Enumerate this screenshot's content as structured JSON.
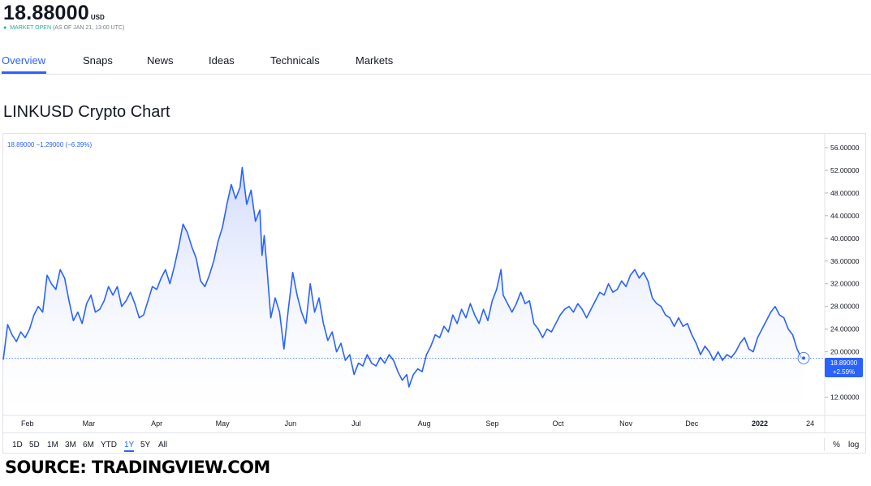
{
  "header": {
    "price": "18.88000",
    "currency": "USD",
    "status_open": "MARKET OPEN",
    "status_asof": "(AS OF JAN 21, 13:00 UTC)"
  },
  "tabs": [
    {
      "label": "Overview",
      "active": true
    },
    {
      "label": "Snaps",
      "active": false
    },
    {
      "label": "News",
      "active": false
    },
    {
      "label": "Ideas",
      "active": false
    },
    {
      "label": "Technicals",
      "active": false
    },
    {
      "label": "Markets",
      "active": false
    }
  ],
  "page_title": "LINKUSD Crypto Chart",
  "legend": {
    "value": "18.89000",
    "change": "−1.29000",
    "change_pct": "(−6.39%)"
  },
  "last_price_tag": {
    "value": "18.89000",
    "change_pct": "+2.59%"
  },
  "range_buttons": [
    {
      "label": "1D",
      "active": false
    },
    {
      "label": "5D",
      "active": false
    },
    {
      "label": "1M",
      "active": false
    },
    {
      "label": "3M",
      "active": false
    },
    {
      "label": "6M",
      "active": false
    },
    {
      "label": "YTD",
      "active": false
    },
    {
      "label": "1Y",
      "active": true
    },
    {
      "label": "5Y",
      "active": false
    },
    {
      "label": "All",
      "active": false
    }
  ],
  "scale_buttons": {
    "percent": "%",
    "log": "log"
  },
  "source": "SOURCE: TRADINGVIEW.COM",
  "colors": {
    "line": "#2962ff",
    "fill_top": "#d4dcfb",
    "accent": "#2962ff",
    "status_green": "#22ab94"
  },
  "chart_data": {
    "type": "area",
    "title": "",
    "series": [
      {
        "name": "",
        "color": "#2962ff"
      }
    ],
    "x_tick_labels": [
      "Feb",
      "Mar",
      "Apr",
      "May",
      "Jun",
      "Jul",
      "Aug",
      "Sep",
      "Oct",
      "Nov",
      "Dec",
      "2022",
      "24"
    ],
    "y_tick_labels": [
      "12.00000",
      "16.00000",
      "20.00000",
      "24.00000",
      "28.00000",
      "32.00000",
      "36.00000",
      "40.00000",
      "44.00000",
      "48.00000",
      "52.00000",
      "56.00000"
    ],
    "ylim": [
      9.5,
      58
    ],
    "grid": false,
    "y_axis_position": "right",
    "last_value": 18.89,
    "points": [
      [
        "2021-01-21",
        18.6
      ],
      [
        "2021-01-23",
        24.8
      ],
      [
        "2021-01-25",
        23.0
      ],
      [
        "2021-01-27",
        21.8
      ],
      [
        "2021-01-29",
        23.5
      ],
      [
        "2021-01-31",
        22.5
      ],
      [
        "2021-02-02",
        24.0
      ],
      [
        "2021-02-04",
        26.5
      ],
      [
        "2021-02-06",
        28.0
      ],
      [
        "2021-02-08",
        27.0
      ],
      [
        "2021-02-10",
        33.5
      ],
      [
        "2021-02-12",
        32.0
      ],
      [
        "2021-02-14",
        31.0
      ],
      [
        "2021-02-16",
        34.5
      ],
      [
        "2021-02-18",
        33.0
      ],
      [
        "2021-02-20",
        29.0
      ],
      [
        "2021-02-22",
        25.5
      ],
      [
        "2021-02-24",
        27.0
      ],
      [
        "2021-02-26",
        25.0
      ],
      [
        "2021-02-28",
        28.5
      ],
      [
        "2021-03-02",
        30.0
      ],
      [
        "2021-03-04",
        27.0
      ],
      [
        "2021-03-06",
        27.5
      ],
      [
        "2021-03-08",
        29.0
      ],
      [
        "2021-03-10",
        31.5
      ],
      [
        "2021-03-12",
        30.0
      ],
      [
        "2021-03-14",
        31.5
      ],
      [
        "2021-03-16",
        28.0
      ],
      [
        "2021-03-18",
        29.0
      ],
      [
        "2021-03-20",
        30.5
      ],
      [
        "2021-03-22",
        28.5
      ],
      [
        "2021-03-24",
        26.0
      ],
      [
        "2021-03-26",
        26.5
      ],
      [
        "2021-03-28",
        29.0
      ],
      [
        "2021-03-30",
        31.5
      ],
      [
        "2021-04-01",
        31.0
      ],
      [
        "2021-04-03",
        33.0
      ],
      [
        "2021-04-05",
        34.5
      ],
      [
        "2021-04-07",
        32.0
      ],
      [
        "2021-04-09",
        35.0
      ],
      [
        "2021-04-11",
        38.5
      ],
      [
        "2021-04-13",
        42.5
      ],
      [
        "2021-04-15",
        41.0
      ],
      [
        "2021-04-17",
        38.5
      ],
      [
        "2021-04-19",
        36.5
      ],
      [
        "2021-04-21",
        32.5
      ],
      [
        "2021-04-23",
        31.5
      ],
      [
        "2021-04-25",
        33.5
      ],
      [
        "2021-04-27",
        36.0
      ],
      [
        "2021-04-29",
        39.5
      ],
      [
        "2021-05-01",
        42.0
      ],
      [
        "2021-05-03",
        46.0
      ],
      [
        "2021-05-05",
        49.5
      ],
      [
        "2021-05-07",
        47.0
      ],
      [
        "2021-05-09",
        49.0
      ],
      [
        "2021-05-10",
        52.5
      ],
      [
        "2021-05-12",
        46.0
      ],
      [
        "2021-05-14",
        48.5
      ],
      [
        "2021-05-16",
        43.0
      ],
      [
        "2021-05-18",
        45.0
      ],
      [
        "2021-05-19",
        37.0
      ],
      [
        "2021-05-20",
        40.5
      ],
      [
        "2021-05-21",
        36.0
      ],
      [
        "2021-05-23",
        26.0
      ],
      [
        "2021-05-25",
        29.5
      ],
      [
        "2021-05-27",
        27.0
      ],
      [
        "2021-05-29",
        20.5
      ],
      [
        "2021-05-31",
        27.5
      ],
      [
        "2021-06-02",
        34.0
      ],
      [
        "2021-06-04",
        30.0
      ],
      [
        "2021-06-06",
        27.0
      ],
      [
        "2021-06-08",
        25.0
      ],
      [
        "2021-06-10",
        32.0
      ],
      [
        "2021-06-12",
        27.0
      ],
      [
        "2021-06-14",
        29.5
      ],
      [
        "2021-06-16",
        25.0
      ],
      [
        "2021-06-18",
        22.0
      ],
      [
        "2021-06-20",
        23.5
      ],
      [
        "2021-06-22",
        20.0
      ],
      [
        "2021-06-24",
        21.5
      ],
      [
        "2021-06-26",
        18.5
      ],
      [
        "2021-06-28",
        19.5
      ],
      [
        "2021-06-30",
        16.0
      ],
      [
        "2021-07-02",
        18.0
      ],
      [
        "2021-07-04",
        17.5
      ],
      [
        "2021-07-06",
        19.5
      ],
      [
        "2021-07-08",
        18.0
      ],
      [
        "2021-07-10",
        17.5
      ],
      [
        "2021-07-12",
        19.0
      ],
      [
        "2021-07-14",
        18.0
      ],
      [
        "2021-07-16",
        19.5
      ],
      [
        "2021-07-18",
        18.5
      ],
      [
        "2021-07-20",
        16.5
      ],
      [
        "2021-07-22",
        15.0
      ],
      [
        "2021-07-24",
        16.0
      ],
      [
        "2021-07-25",
        13.8
      ],
      [
        "2021-07-27",
        16.0
      ],
      [
        "2021-07-29",
        17.0
      ],
      [
        "2021-07-31",
        16.5
      ],
      [
        "2021-08-02",
        19.5
      ],
      [
        "2021-08-04",
        21.0
      ],
      [
        "2021-08-06",
        23.0
      ],
      [
        "2021-08-08",
        22.5
      ],
      [
        "2021-08-10",
        24.5
      ],
      [
        "2021-08-12",
        23.5
      ],
      [
        "2021-08-14",
        26.5
      ],
      [
        "2021-08-16",
        25.0
      ],
      [
        "2021-08-18",
        27.5
      ],
      [
        "2021-08-20",
        26.0
      ],
      [
        "2021-08-22",
        28.5
      ],
      [
        "2021-08-24",
        26.5
      ],
      [
        "2021-08-26",
        25.0
      ],
      [
        "2021-08-28",
        27.5
      ],
      [
        "2021-08-30",
        25.5
      ],
      [
        "2021-09-01",
        29.0
      ],
      [
        "2021-09-03",
        31.0
      ],
      [
        "2021-09-05",
        34.5
      ],
      [
        "2021-09-06",
        30.0
      ],
      [
        "2021-09-08",
        28.5
      ],
      [
        "2021-09-10",
        27.0
      ],
      [
        "2021-09-12",
        28.5
      ],
      [
        "2021-09-14",
        30.5
      ],
      [
        "2021-09-16",
        28.5
      ],
      [
        "2021-09-18",
        29.0
      ],
      [
        "2021-09-20",
        25.0
      ],
      [
        "2021-09-22",
        24.0
      ],
      [
        "2021-09-24",
        22.5
      ],
      [
        "2021-09-26",
        24.0
      ],
      [
        "2021-09-28",
        23.5
      ],
      [
        "2021-09-30",
        25.0
      ],
      [
        "2021-10-02",
        26.5
      ],
      [
        "2021-10-04",
        27.5
      ],
      [
        "2021-10-06",
        28.0
      ],
      [
        "2021-10-08",
        27.0
      ],
      [
        "2021-10-10",
        28.5
      ],
      [
        "2021-10-12",
        27.5
      ],
      [
        "2021-10-14",
        26.0
      ],
      [
        "2021-10-16",
        27.5
      ],
      [
        "2021-10-18",
        29.0
      ],
      [
        "2021-10-20",
        30.5
      ],
      [
        "2021-10-22",
        30.0
      ],
      [
        "2021-10-24",
        32.0
      ],
      [
        "2021-10-26",
        30.5
      ],
      [
        "2021-10-28",
        31.0
      ],
      [
        "2021-10-30",
        32.5
      ],
      [
        "2021-11-01",
        31.5
      ],
      [
        "2021-11-03",
        33.5
      ],
      [
        "2021-11-05",
        34.5
      ],
      [
        "2021-11-07",
        33.0
      ],
      [
        "2021-11-09",
        34.0
      ],
      [
        "2021-11-11",
        32.5
      ],
      [
        "2021-11-13",
        29.5
      ],
      [
        "2021-11-15",
        28.5
      ],
      [
        "2021-11-17",
        28.0
      ],
      [
        "2021-11-19",
        26.5
      ],
      [
        "2021-11-21",
        26.0
      ],
      [
        "2021-11-23",
        24.5
      ],
      [
        "2021-11-25",
        26.0
      ],
      [
        "2021-11-27",
        24.5
      ],
      [
        "2021-11-29",
        25.0
      ],
      [
        "2021-12-01",
        23.0
      ],
      [
        "2021-12-03",
        21.5
      ],
      [
        "2021-12-05",
        19.5
      ],
      [
        "2021-12-07",
        21.0
      ],
      [
        "2021-12-09",
        20.0
      ],
      [
        "2021-12-11",
        18.5
      ],
      [
        "2021-12-13",
        20.0
      ],
      [
        "2021-12-15",
        18.5
      ],
      [
        "2021-12-17",
        19.5
      ],
      [
        "2021-12-19",
        19.0
      ],
      [
        "2021-12-21",
        20.0
      ],
      [
        "2021-12-23",
        21.5
      ],
      [
        "2021-12-25",
        22.5
      ],
      [
        "2021-12-27",
        20.5
      ],
      [
        "2021-12-29",
        20.0
      ],
      [
        "2021-12-31",
        22.5
      ],
      [
        "2022-01-02",
        24.0
      ],
      [
        "2022-01-04",
        25.5
      ],
      [
        "2022-01-06",
        27.0
      ],
      [
        "2022-01-08",
        28.0
      ],
      [
        "2022-01-10",
        26.5
      ],
      [
        "2022-01-12",
        26.0
      ],
      [
        "2022-01-14",
        24.0
      ],
      [
        "2022-01-16",
        23.0
      ],
      [
        "2022-01-18",
        20.5
      ],
      [
        "2022-01-20",
        18.9
      ],
      [
        "2022-01-21",
        18.89
      ]
    ]
  }
}
